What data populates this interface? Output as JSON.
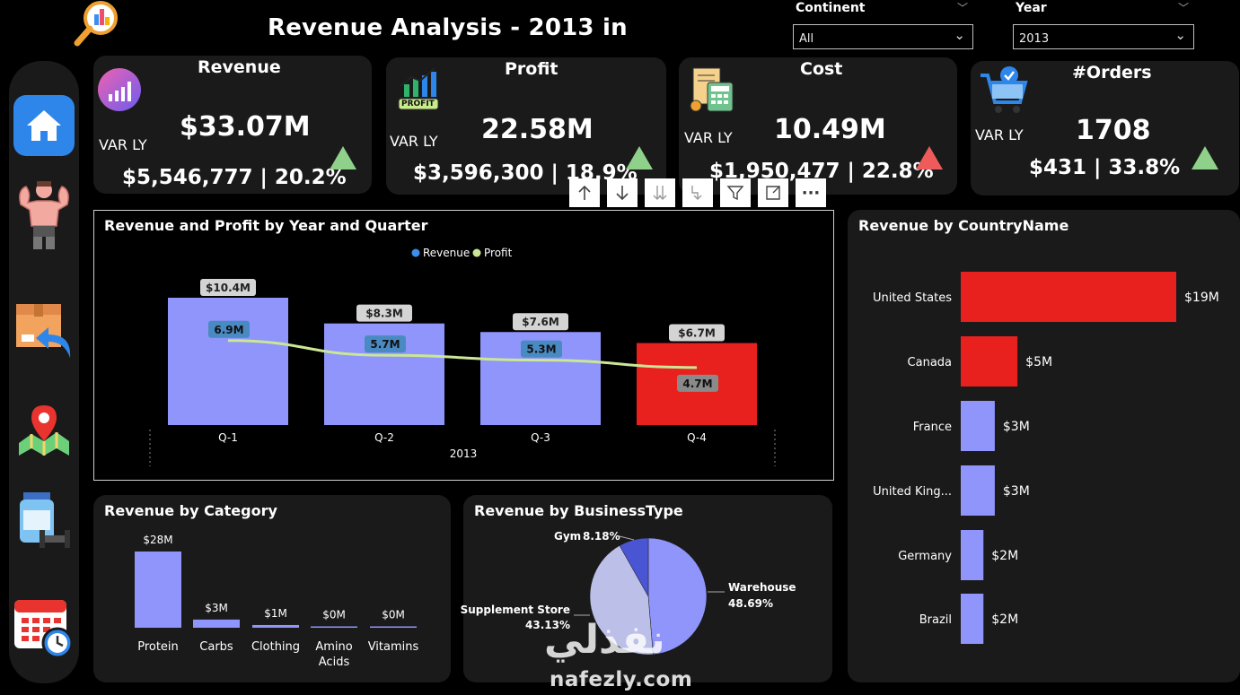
{
  "header": {
    "title": "Revenue Analysis - 2013 in",
    "continent_label": "Continent",
    "continent_value": "All",
    "year_label": "Year",
    "year_value": "2013"
  },
  "sidebar": {
    "items": [
      {
        "icon": "home-icon"
      },
      {
        "icon": "bodybuilder-icon"
      },
      {
        "icon": "box-return-icon"
      },
      {
        "icon": "map-pin-icon"
      },
      {
        "icon": "supplement-jar-icon"
      },
      {
        "icon": "calendar-clock-icon"
      }
    ]
  },
  "kpis": {
    "revenue": {
      "title": "Revenue",
      "value": "$33.07M",
      "var_label": "VAR LY",
      "delta": "$5,546,777 | 20.2%",
      "trend": "up"
    },
    "profit": {
      "title": "Profit",
      "value": "22.58M",
      "var_label": "VAR LY",
      "delta": "$3,596,300 | 18.9%",
      "trend": "up",
      "icon_text": "PROFIT"
    },
    "cost": {
      "title": "Cost",
      "value": "10.49M",
      "var_label": "VAR LY",
      "delta": "$1,950,477 | 22.8%",
      "trend": "up-bad"
    },
    "orders": {
      "title": "#Orders",
      "value": "1708",
      "var_label": "VAR LY",
      "delta": "$431 | 33.8%",
      "trend": "up"
    }
  },
  "toolbar": {
    "buttons": [
      "drill-up-icon",
      "drill-down-icon",
      "expand-all-icon",
      "expand-next-icon",
      "filter-icon",
      "focus-mode-icon",
      "more-options-icon"
    ],
    "more_label": "···"
  },
  "colors": {
    "bar": "#8f95fa",
    "highlight": "#e8201e",
    "profit_line": "#cbe796",
    "up": "#8fd08a",
    "down": "#ef5b5b",
    "card": "#1a1a1a"
  },
  "chart_data": [
    {
      "type": "bar",
      "title": "Revenue and Profit by Year and Quarter",
      "categories": [
        "Q-1",
        "Q-2",
        "Q-3",
        "Q-4"
      ],
      "group_label": "2013",
      "legend": [
        "Revenue",
        "Profit"
      ],
      "legend_position": "top-center",
      "series": [
        {
          "name": "Revenue",
          "type": "bar",
          "values": [
            10.4,
            8.3,
            7.6,
            6.7
          ],
          "labels": [
            "$10.4M",
            "$8.3M",
            "$7.6M",
            "$6.7M"
          ]
        },
        {
          "name": "Profit",
          "type": "line",
          "values": [
            6.9,
            5.7,
            5.3,
            4.7
          ],
          "labels": [
            "6.9M",
            "5.7M",
            "5.3M",
            "4.7M"
          ]
        }
      ],
      "highlighted_index": 3
    },
    {
      "type": "bar",
      "orientation": "horizontal",
      "title": "Revenue by CountryName",
      "categories": [
        "United States",
        "Canada",
        "France",
        "United King...",
        "Germany",
        "Brazil"
      ],
      "values": [
        19,
        5,
        3,
        3,
        2,
        2
      ],
      "labels": [
        "$19M",
        "$5M",
        "$3M",
        "$3M",
        "$2M",
        "$2M"
      ],
      "highlighted_indices": [
        0,
        1
      ]
    },
    {
      "type": "bar",
      "title": "Revenue by Category",
      "categories": [
        "Protein",
        "Carbs",
        "Clothing",
        "Amino Acids",
        "Vitamins"
      ],
      "values": [
        28,
        3,
        1,
        0.3,
        0.2
      ],
      "labels": [
        "$28M",
        "$3M",
        "$1M",
        "$0M",
        "$0M"
      ]
    },
    {
      "type": "pie",
      "title": "Revenue by BusinessType",
      "slices": [
        {
          "name": "Warehouse",
          "value": 48.69,
          "label": "48.69%",
          "color": "#8f95fa"
        },
        {
          "name": "Supplement Store",
          "value": 43.13,
          "label": "43.13%",
          "color": "#bcc0e8"
        },
        {
          "name": "Gym",
          "value": 8.18,
          "label": "8.18%",
          "color": "#4a55d4"
        }
      ]
    }
  ],
  "watermark": {
    "arabic": "نفذلي",
    "latin": "nafezly.com"
  }
}
